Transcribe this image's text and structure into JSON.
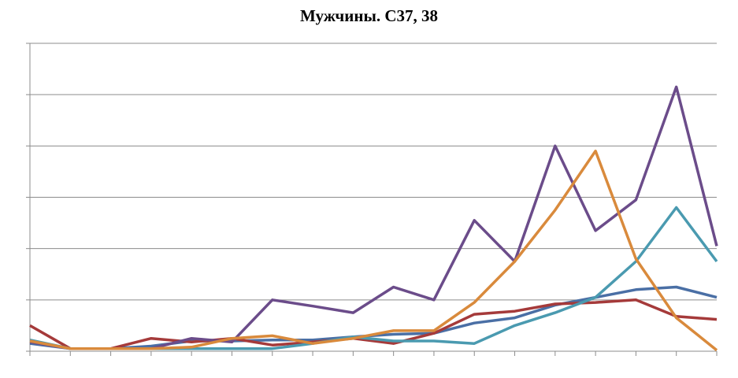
{
  "chart_data": {
    "type": "line",
    "title": "Мужчины. С37, 38",
    "xlabel": "",
    "ylabel": "",
    "grid": true,
    "ylim": [
      0,
      6
    ],
    "x": [
      0,
      1,
      2,
      3,
      4,
      5,
      6,
      7,
      8,
      9,
      10,
      11,
      12,
      13,
      14,
      15,
      16,
      17
    ],
    "series": [
      {
        "color": "#4a6fa5",
        "values": [
          0.15,
          0.05,
          0.05,
          0.1,
          0.2,
          0.2,
          0.22,
          0.22,
          0.28,
          0.33,
          0.35,
          0.55,
          0.65,
          0.9,
          1.05,
          1.2,
          1.25,
          1.05
        ]
      },
      {
        "color": "#a53a3a",
        "values": [
          0.5,
          0.05,
          0.05,
          0.25,
          0.18,
          0.25,
          0.12,
          0.18,
          0.25,
          0.15,
          0.35,
          0.72,
          0.78,
          0.92,
          0.95,
          1.0,
          0.68,
          0.62
        ]
      },
      {
        "color": "#6b4c8a",
        "values": [
          0.18,
          0.05,
          0.05,
          0.05,
          0.25,
          0.18,
          1.0,
          0.88,
          0.75,
          1.25,
          1.0,
          2.55,
          1.75,
          4.0,
          2.35,
          2.95,
          5.15,
          2.05
        ]
      },
      {
        "color": "#4a9ab0",
        "values": [
          0.22,
          0.05,
          0.05,
          0.05,
          0.05,
          0.05,
          0.05,
          0.15,
          0.28,
          0.2,
          0.2,
          0.15,
          0.5,
          0.75,
          1.05,
          1.75,
          2.8,
          1.75
        ]
      },
      {
        "color": "#d98a3c",
        "values": [
          0.2,
          0.05,
          0.05,
          0.05,
          0.08,
          0.25,
          0.3,
          0.15,
          0.25,
          0.4,
          0.4,
          0.95,
          1.75,
          2.75,
          3.9,
          1.8,
          0.65,
          0.02
        ]
      }
    ]
  }
}
